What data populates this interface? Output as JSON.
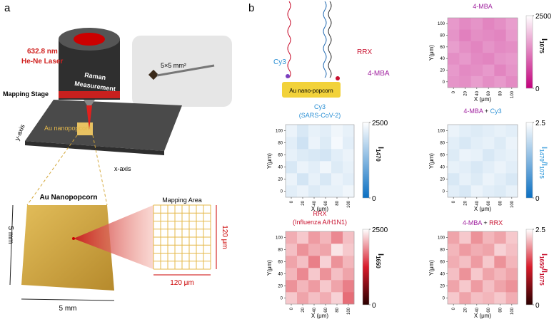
{
  "diagram": {
    "panel_a": "a",
    "panel_b": "b",
    "laser_wavelength": "632.8 nm",
    "laser_type": "He-Ne Laser",
    "raman_1": "Raman",
    "raman_2": "Measurement",
    "mapping_stage": "Mapping Stage",
    "au_nanopopcorn_small": "Au nanopopcorn",
    "y_axis": "y-axis",
    "x_axis": "x-axis",
    "chip_size": "5×5 mm²",
    "au_nanopopcorn": "Au Nanopopcorn",
    "mapping_area": "Mapping Area",
    "side_left": "5 mm",
    "side_bottom": "5 mm",
    "area_height": "120 μm",
    "area_width": "120 μm",
    "label_cy3": "Cy3",
    "label_rrx": "RRX",
    "label_4mba": "4-MBA",
    "substrate": "Au nano-popcorn"
  },
  "chart_data": [
    {
      "type": "heatmap",
      "title": [
        [
          {
            "text": "4-MBA",
            "color": "#a0209f"
          }
        ]
      ],
      "xlabel": "X (μm)",
      "ylabel": "Y(μm)",
      "x": [
        0,
        20,
        40,
        60,
        80,
        100
      ],
      "y": [
        0,
        20,
        40,
        60,
        80,
        100
      ],
      "xlim": [
        -10,
        110
      ],
      "ylim": [
        -10,
        110
      ],
      "xticks": [
        0,
        20,
        40,
        60,
        80,
        100
      ],
      "yticks": [
        0,
        20,
        40,
        60,
        80,
        100
      ],
      "clim": [
        0,
        2500
      ],
      "cticks": [
        0,
        2500
      ],
      "cmap": [
        "#c2007c",
        "#ffffff"
      ],
      "cbar_label": [
        {
          "text": "I",
          "color": "#111111"
        },
        {
          "text": "1075",
          "color": "#111111",
          "sub": true
        }
      ],
      "z": [
        [
          1450,
          1400,
          1550,
          1400,
          1500,
          1350
        ],
        [
          1500,
          1350,
          1400,
          1500,
          1300,
          1450
        ],
        [
          1400,
          1500,
          1350,
          1300,
          1450,
          1500
        ],
        [
          1550,
          1400,
          1300,
          1450,
          1350,
          1400
        ],
        [
          1450,
          1250,
          1400,
          1350,
          1300,
          1500
        ],
        [
          1500,
          1350,
          1450,
          1300,
          1400,
          1550
        ]
      ]
    },
    {
      "type": "heatmap",
      "title": [
        [
          {
            "text": "Cy3",
            "color": "#2a8fd4"
          }
        ],
        [
          {
            "text": "(SARS-CoV-2)",
            "color": "#2a8fd4"
          }
        ]
      ],
      "xlabel": "X (μm)",
      "ylabel": "Y(μm)",
      "x": [
        0,
        20,
        40,
        60,
        80,
        100
      ],
      "y": [
        0,
        20,
        40,
        60,
        80,
        100
      ],
      "xlim": [
        -10,
        110
      ],
      "ylim": [
        -10,
        110
      ],
      "xticks": [
        0,
        20,
        40,
        60,
        80,
        100
      ],
      "yticks": [
        0,
        20,
        40,
        60,
        80,
        100
      ],
      "clim": [
        0,
        2500
      ],
      "cticks": [
        0,
        2500
      ],
      "cmap": [
        "#0a6fc2",
        "#ffffff"
      ],
      "cbar_label": [
        {
          "text": "I",
          "color": "#111111"
        },
        {
          "text": "1470",
          "color": "#111111",
          "sub": true
        }
      ],
      "z": [
        [
          2200,
          2300,
          2150,
          2250,
          2250,
          2350
        ],
        [
          2300,
          2050,
          2250,
          2100,
          2300,
          2200
        ],
        [
          2100,
          2300,
          2200,
          2350,
          2150,
          2250
        ],
        [
          2250,
          2150,
          2100,
          2050,
          2200,
          2300
        ],
        [
          2200,
          2000,
          2300,
          2150,
          2400,
          2200
        ],
        [
          2300,
          2100,
          2250,
          2200,
          2350,
          2250
        ]
      ]
    },
    {
      "type": "heatmap",
      "title": [
        [
          {
            "text": "4-MBA",
            "color": "#a0209f"
          },
          {
            "text": " + ",
            "color": "#111111"
          },
          {
            "text": "Cy3",
            "color": "#2a8fd4"
          }
        ]
      ],
      "xlabel": "X (μm)",
      "ylabel": "Y(μm)",
      "x": [
        0,
        20,
        40,
        60,
        80,
        100
      ],
      "y": [
        0,
        20,
        40,
        60,
        80,
        100
      ],
      "xlim": [
        -10,
        110
      ],
      "ylim": [
        -10,
        110
      ],
      "xticks": [
        0,
        20,
        40,
        60,
        80,
        100
      ],
      "yticks": [
        0,
        20,
        40,
        60,
        80,
        100
      ],
      "clim": [
        0,
        2.5
      ],
      "cticks": [
        0,
        2.5
      ],
      "cmap": [
        "#0a6fc2",
        "#ffffff"
      ],
      "cbar_label": [
        {
          "text": "I",
          "color": "#4fa8e0"
        },
        {
          "text": "1470",
          "color": "#4fa8e0",
          "sub": true
        },
        {
          "text": "/I",
          "color": "#4fa8e0"
        },
        {
          "text": "1075",
          "color": "#4fa8e0",
          "sub": true
        }
      ],
      "z": [
        [
          2.2,
          2.1,
          2.3,
          2.2,
          2.15,
          2.25
        ],
        [
          2.1,
          2.25,
          2.15,
          2.3,
          2.2,
          2.1
        ],
        [
          2.25,
          2.2,
          2.1,
          2.2,
          2.3,
          2.2
        ],
        [
          2.15,
          2.3,
          2.25,
          2.1,
          2.2,
          2.25
        ],
        [
          2.2,
          2.1,
          2.2,
          2.25,
          2.15,
          2.3
        ],
        [
          2.3,
          2.2,
          2.15,
          2.2,
          2.25,
          2.2
        ]
      ]
    },
    {
      "type": "heatmap",
      "title": [
        [
          {
            "text": "RRX",
            "color": "#c8102e"
          }
        ],
        [
          {
            "text": "(Influenza A/H1N1)",
            "color": "#c8102e"
          }
        ]
      ],
      "xlabel": "X (μm)",
      "ylabel": "Y(μm)",
      "x": [
        0,
        20,
        40,
        60,
        80,
        100
      ],
      "y": [
        0,
        20,
        40,
        60,
        80,
        100
      ],
      "xlim": [
        -10,
        110
      ],
      "ylim": [
        -10,
        110
      ],
      "xticks": [
        0,
        20,
        40,
        60,
        80,
        100
      ],
      "yticks": [
        0,
        20,
        40,
        60,
        80,
        100
      ],
      "clim": [
        0,
        2500
      ],
      "cticks": [
        0,
        2500
      ],
      "cmap": [
        "#2a0000",
        "#d81b2b",
        "#ffffff"
      ],
      "cbar_label": [
        {
          "text": "I",
          "color": "#111111"
        },
        {
          "text": "1650",
          "color": "#111111",
          "sub": true
        }
      ],
      "z": [
        [
          2200,
          2000,
          2150,
          2050,
          2250,
          1700
        ],
        [
          1900,
          2100,
          1950,
          2200,
          2000,
          1800
        ],
        [
          2100,
          1850,
          2200,
          1900,
          2150,
          2000
        ],
        [
          2000,
          2150,
          1800,
          2250,
          1900,
          2100
        ],
        [
          2150,
          1900,
          2050,
          2000,
          2350,
          2200
        ],
        [
          2050,
          2200,
          1950,
          2100,
          1850,
          2150
        ]
      ]
    },
    {
      "type": "heatmap",
      "title": [
        [
          {
            "text": "4-MBA",
            "color": "#a0209f"
          },
          {
            "text": " + ",
            "color": "#111111"
          },
          {
            "text": "RRX",
            "color": "#c8102e"
          }
        ]
      ],
      "xlabel": "X (μm)",
      "ylabel": "Y(μm)",
      "x": [
        0,
        20,
        40,
        60,
        80,
        100
      ],
      "y": [
        0,
        20,
        40,
        60,
        80,
        100
      ],
      "xlim": [
        -10,
        110
      ],
      "ylim": [
        -10,
        110
      ],
      "xticks": [
        0,
        20,
        40,
        60,
        80,
        100
      ],
      "yticks": [
        0,
        20,
        40,
        60,
        80,
        100
      ],
      "clim": [
        0,
        2.5
      ],
      "cticks": [
        0,
        2.5
      ],
      "cmap": [
        "#2a0000",
        "#d81b2b",
        "#ffffff"
      ],
      "cbar_label": [
        {
          "text": "I",
          "color": "#c8102e"
        },
        {
          "text": "1650",
          "color": "#c8102e",
          "sub": true
        },
        {
          "text": "/I",
          "color": "#c8102e"
        },
        {
          "text": "1075",
          "color": "#c8102e",
          "sub": true
        }
      ],
      "z": [
        [
          2.2,
          2.0,
          2.15,
          2.1,
          2.2,
          2.05
        ],
        [
          2.0,
          2.2,
          1.95,
          2.15,
          2.0,
          1.9
        ],
        [
          2.15,
          1.9,
          2.2,
          2.0,
          2.1,
          2.0
        ],
        [
          2.05,
          2.15,
          1.95,
          2.2,
          1.9,
          2.1
        ],
        [
          2.1,
          1.95,
          2.05,
          2.0,
          2.25,
          2.15
        ],
        [
          2.0,
          2.2,
          1.9,
          2.1,
          2.0,
          2.2
        ]
      ]
    }
  ]
}
